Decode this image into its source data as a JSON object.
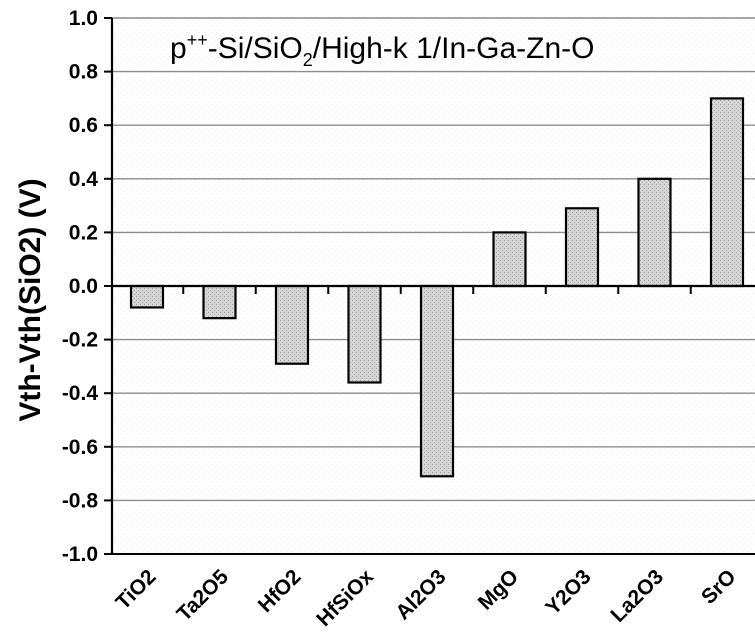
{
  "chart_data": {
    "type": "bar",
    "title_parts": {
      "p": "p",
      "p_sup": "++",
      "a": "-Si/SiO",
      "a_sub": "2",
      "b": "/High-k 1/In-Ga-Zn-O"
    },
    "xlabel": "",
    "ylabel": "Vth-Vth(SiO2) (V)",
    "ylim": [
      -1.0,
      1.0
    ],
    "yticks": [
      "1.0",
      "0.8",
      "0.6",
      "0.4",
      "0.2",
      "0.0",
      "-0.2",
      "-0.4",
      "-0.6",
      "-0.8",
      "-1.0"
    ],
    "ytick_values": [
      1.0,
      0.8,
      0.6,
      0.4,
      0.2,
      0.0,
      -0.2,
      -0.4,
      -0.6,
      -0.8,
      -1.0
    ],
    "categories": [
      "TiO2",
      "Ta2O5",
      "HfO2",
      "HfSiOx",
      "Al2O3",
      "MgO",
      "Y2O3",
      "La2O3",
      "SrO"
    ],
    "values": [
      -0.08,
      -0.12,
      -0.29,
      -0.36,
      -0.71,
      0.2,
      0.29,
      0.4,
      0.7
    ],
    "grid": true,
    "legend": "none",
    "bar_color": "#d3d3d3"
  }
}
